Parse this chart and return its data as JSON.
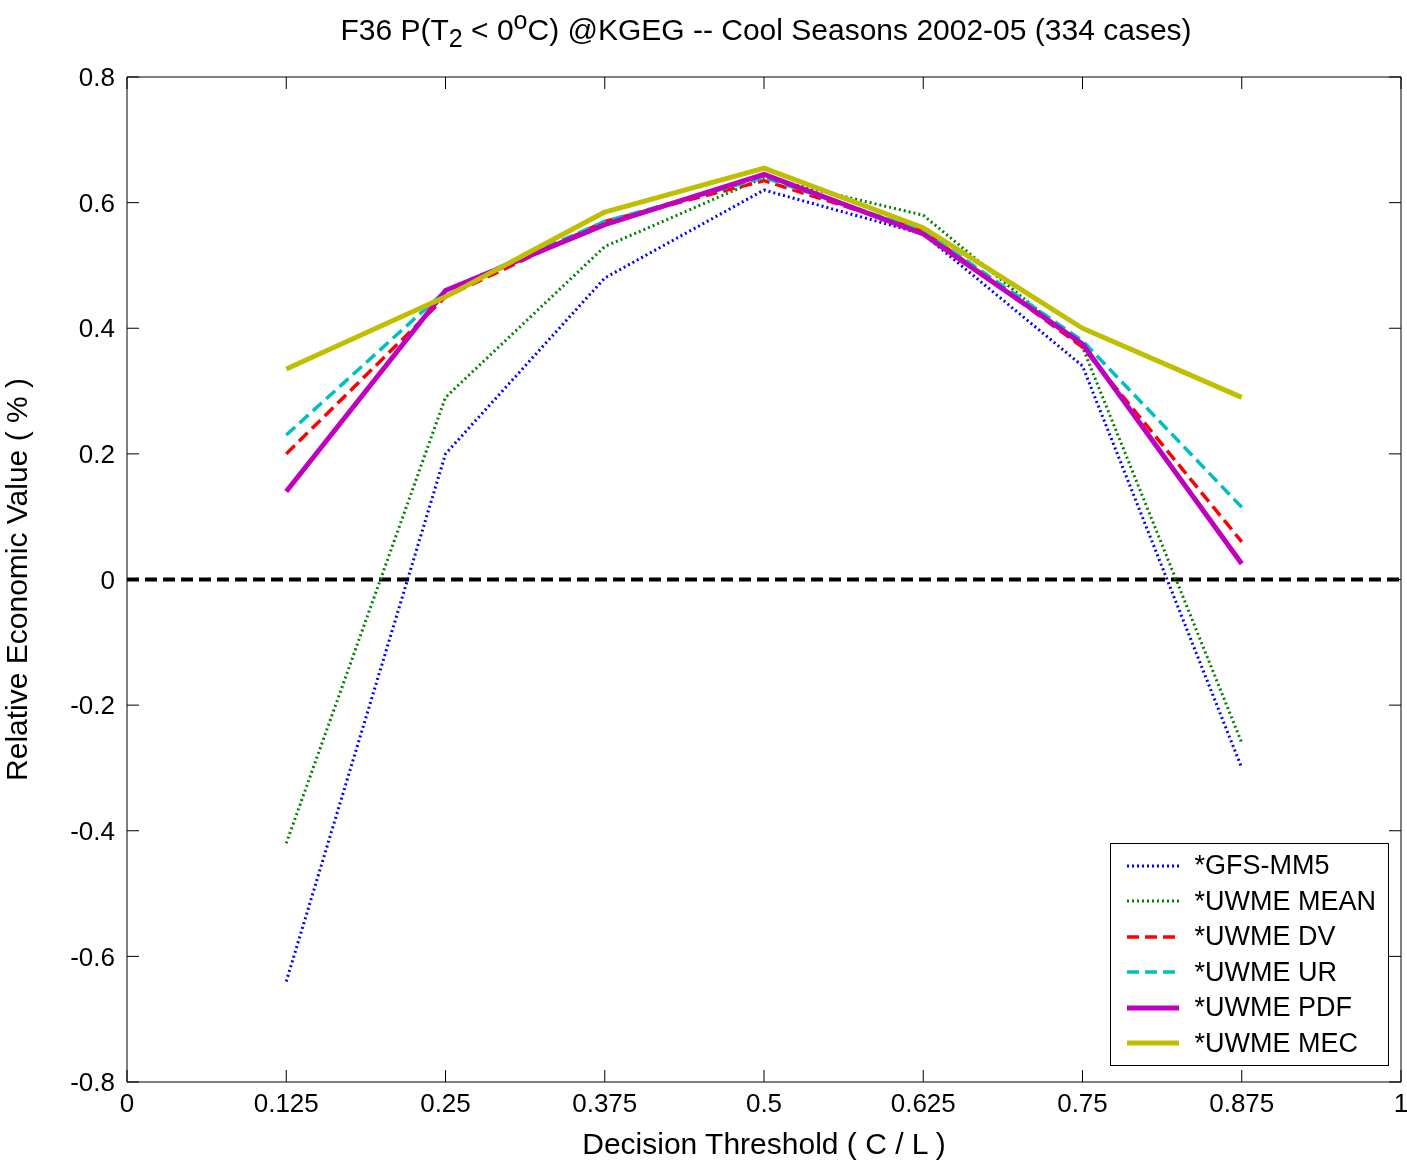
{
  "chart_data": {
    "type": "line",
    "title": "F36 P(T$_{2}$ < 0$^{o}$C) @KGEG -- Cool Seasons 2002-05 (334 cases)",
    "xlabel": "Decision Threshold ( C / L )",
    "ylabel": "Relative Economic Value ( % )",
    "x": [
      0.125,
      0.25,
      0.375,
      0.5,
      0.625,
      0.75,
      0.875
    ],
    "xlim": [
      0,
      1
    ],
    "xticks": [
      0,
      0.125,
      0.25,
      0.375,
      0.5,
      0.625,
      0.75,
      0.875,
      1
    ],
    "ylim": [
      -0.8,
      0.8
    ],
    "yticks": [
      -0.8,
      -0.6,
      -0.4,
      -0.2,
      0,
      0.2,
      0.4,
      0.6,
      0.8
    ],
    "grid": false,
    "legend": "bottom right",
    "marker": "none",
    "ref_lines": [
      {
        "axis": "y",
        "value": 0,
        "color": "#000000",
        "line_style": "dashed"
      }
    ],
    "series": [
      {
        "name": "*GFS-MM5",
        "color": "#0000ff",
        "line_style": "dotted",
        "values": [
          -0.64,
          0.2,
          0.48,
          0.62,
          0.55,
          0.34,
          -0.3
        ]
      },
      {
        "name": "*UWME MEAN",
        "color": "#008000",
        "line_style": "dotted",
        "values": [
          -0.42,
          0.29,
          0.53,
          0.64,
          0.58,
          0.37,
          -0.26
        ]
      },
      {
        "name": "*UWME DV",
        "color": "#ff0000",
        "line_style": "dashed",
        "values": [
          0.2,
          0.45,
          0.57,
          0.635,
          0.555,
          0.37,
          0.06
        ]
      },
      {
        "name": "*UWME UR",
        "color": "#00bfbf",
        "line_style": "dashed",
        "values": [
          0.23,
          0.46,
          0.57,
          0.64,
          0.555,
          0.38,
          0.115
        ]
      },
      {
        "name": "*UWME PDF",
        "color": "#bf00bf",
        "line_style": "solid",
        "values": [
          0.14,
          0.46,
          0.565,
          0.645,
          0.55,
          0.375,
          0.025
        ]
      },
      {
        "name": "*UWME MEC",
        "color": "#bfbf00",
        "line_style": "solid",
        "values": [
          0.335,
          0.45,
          0.585,
          0.655,
          0.56,
          0.4,
          0.29
        ]
      }
    ]
  }
}
